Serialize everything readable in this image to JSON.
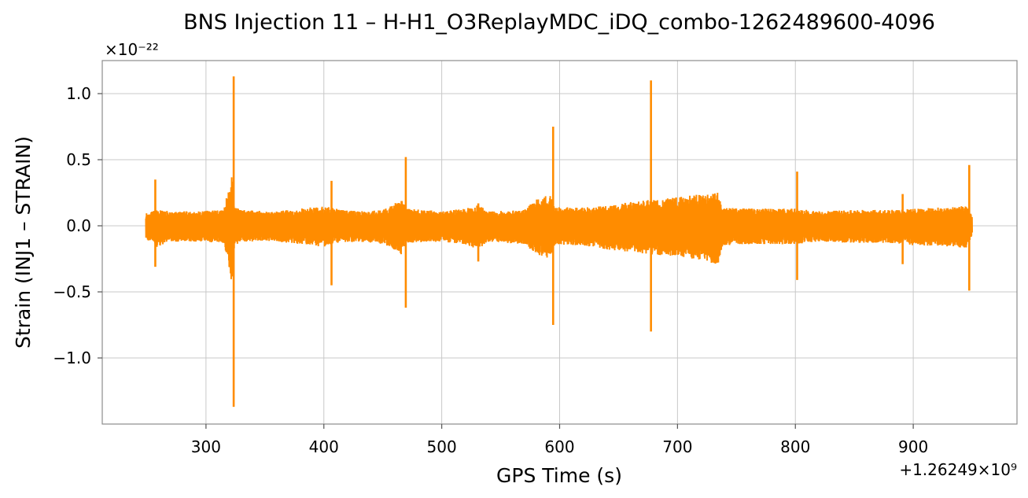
{
  "chart_data": {
    "type": "line",
    "title": "BNS Injection 11 – H-H1_O3ReplayMDC_iDQ_combo-1262489600-4096",
    "xlabel": "GPS Time (s)",
    "ylabel": "Strain (INJ1 – STRAIN)",
    "x_offset_label": "+1.26249×10⁹",
    "y_scale_label": "×10⁻²²",
    "xlim": [
      212,
      988
    ],
    "ylim": [
      -1.5,
      1.25
    ],
    "xticks": [
      300,
      400,
      500,
      600,
      700,
      800,
      900
    ],
    "xtick_labels": [
      "300",
      "400",
      "500",
      "600",
      "700",
      "800",
      "900"
    ],
    "yticks": [
      -1.0,
      -0.5,
      0.0,
      0.5,
      1.0
    ],
    "ytick_labels": [
      "−1.0",
      "−0.5",
      "0.0",
      "0.5",
      "1.0"
    ],
    "grid": true,
    "line_color": "#ff8c00",
    "series": [
      {
        "x_range": [
          249,
          950
        ],
        "envelope_upper": [
          [
            249,
            0.1
          ],
          [
            255,
            0.11
          ],
          [
            258,
            0.12
          ],
          [
            270,
            0.11
          ],
          [
            290,
            0.11
          ],
          [
            315,
            0.12
          ],
          [
            322,
            0.4
          ],
          [
            324,
            0.15
          ],
          [
            330,
            0.12
          ],
          [
            360,
            0.11
          ],
          [
            380,
            0.13
          ],
          [
            400,
            0.15
          ],
          [
            410,
            0.13
          ],
          [
            430,
            0.11
          ],
          [
            450,
            0.12
          ],
          [
            466,
            0.2
          ],
          [
            470,
            0.13
          ],
          [
            500,
            0.11
          ],
          [
            520,
            0.13
          ],
          [
            530,
            0.16
          ],
          [
            540,
            0.11
          ],
          [
            570,
            0.12
          ],
          [
            580,
            0.2
          ],
          [
            592,
            0.24
          ],
          [
            596,
            0.14
          ],
          [
            620,
            0.14
          ],
          [
            640,
            0.15
          ],
          [
            660,
            0.18
          ],
          [
            680,
            0.2
          ],
          [
            700,
            0.22
          ],
          [
            720,
            0.24
          ],
          [
            734,
            0.25
          ],
          [
            738,
            0.14
          ],
          [
            760,
            0.13
          ],
          [
            800,
            0.13
          ],
          [
            820,
            0.11
          ],
          [
            850,
            0.12
          ],
          [
            880,
            0.12
          ],
          [
            900,
            0.13
          ],
          [
            920,
            0.14
          ],
          [
            945,
            0.15
          ],
          [
            950,
            0.08
          ]
        ],
        "envelope_lower": [
          [
            249,
            -0.12
          ],
          [
            255,
            -0.12
          ],
          [
            258,
            -0.16
          ],
          [
            270,
            -0.12
          ],
          [
            290,
            -0.12
          ],
          [
            315,
            -0.13
          ],
          [
            322,
            -0.45
          ],
          [
            324,
            -0.15
          ],
          [
            330,
            -0.12
          ],
          [
            360,
            -0.12
          ],
          [
            380,
            -0.14
          ],
          [
            400,
            -0.16
          ],
          [
            410,
            -0.13
          ],
          [
            430,
            -0.12
          ],
          [
            450,
            -0.14
          ],
          [
            466,
            -0.22
          ],
          [
            470,
            -0.13
          ],
          [
            500,
            -0.12
          ],
          [
            520,
            -0.14
          ],
          [
            530,
            -0.18
          ],
          [
            540,
            -0.12
          ],
          [
            570,
            -0.14
          ],
          [
            580,
            -0.22
          ],
          [
            592,
            -0.26
          ],
          [
            596,
            -0.14
          ],
          [
            620,
            -0.15
          ],
          [
            640,
            -0.18
          ],
          [
            660,
            -0.2
          ],
          [
            680,
            -0.22
          ],
          [
            700,
            -0.23
          ],
          [
            720,
            -0.26
          ],
          [
            734,
            -0.3
          ],
          [
            738,
            -0.15
          ],
          [
            760,
            -0.14
          ],
          [
            800,
            -0.14
          ],
          [
            820,
            -0.12
          ],
          [
            850,
            -0.13
          ],
          [
            880,
            -0.13
          ],
          [
            900,
            -0.15
          ],
          [
            920,
            -0.15
          ],
          [
            945,
            -0.17
          ],
          [
            950,
            -0.08
          ]
        ],
        "spikes": [
          {
            "x": 257,
            "high": 0.35,
            "low": -0.31
          },
          {
            "x": 323.5,
            "high": 1.13,
            "low": -1.37
          },
          {
            "x": 406.5,
            "high": 0.34,
            "low": -0.45
          },
          {
            "x": 469.5,
            "high": 0.52,
            "low": -0.62
          },
          {
            "x": 531,
            "high": 0.17,
            "low": -0.27
          },
          {
            "x": 594.5,
            "high": 0.75,
            "low": -0.75
          },
          {
            "x": 677.5,
            "high": 1.1,
            "low": -0.8
          },
          {
            "x": 801.5,
            "high": 0.41,
            "low": -0.41
          },
          {
            "x": 891,
            "high": 0.24,
            "low": -0.29
          },
          {
            "x": 947.5,
            "high": 0.46,
            "low": -0.49
          }
        ]
      }
    ]
  }
}
